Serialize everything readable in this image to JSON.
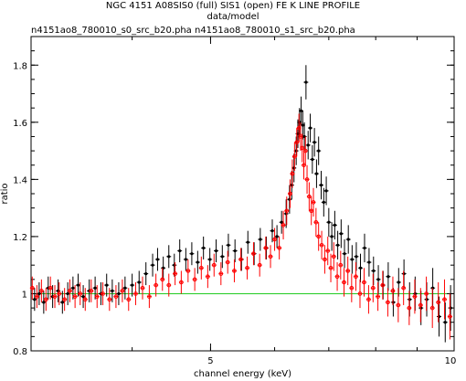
{
  "header": {
    "title": "NGC 4151 A08SIS0 (full) SIS1 (open) FE K LINE PROFILE",
    "subtitle": "data/model",
    "files": "n4151ao8_780010_s0_src_b20.pha n4151ao8_780010_s1_src_b20.pha"
  },
  "chart_data": {
    "type": "scatter",
    "title": "NGC 4151 A08SIS0 (full) SIS1 (open) FE K LINE PROFILE",
    "subtitle": "data/model",
    "xlabel": "channel energy (keV)",
    "ylabel": "ratio",
    "xscale": "log",
    "xlim": [
      3.0,
      10.0
    ],
    "ylim": [
      0.8,
      1.9
    ],
    "xticks": [
      {
        "value": 5,
        "label": "5"
      },
      {
        "value": 10,
        "label": "10"
      }
    ],
    "yticks": [
      {
        "value": 0.8,
        "label": "0.8"
      },
      {
        "value": 1.0,
        "label": "1"
      },
      {
        "value": 1.2,
        "label": "1.2"
      },
      {
        "value": 1.4,
        "label": "1.4"
      },
      {
        "value": 1.6,
        "label": "1.6"
      },
      {
        "value": 1.8,
        "label": "1.8"
      }
    ],
    "reference_line": {
      "y": 1.0,
      "color": "#22cc22"
    },
    "grid": false,
    "series": [
      {
        "color": "#000000",
        "points": [
          [
            3.03,
            0.98,
            0.04
          ],
          [
            3.07,
            1.0,
            0.04
          ],
          [
            3.11,
            0.97,
            0.04
          ],
          [
            3.15,
            1.02,
            0.04
          ],
          [
            3.19,
            0.99,
            0.04
          ],
          [
            3.24,
            1.01,
            0.04
          ],
          [
            3.28,
            0.97,
            0.04
          ],
          [
            3.33,
            1.0,
            0.04
          ],
          [
            3.38,
            1.02,
            0.04
          ],
          [
            3.43,
            1.03,
            0.04
          ],
          [
            3.48,
            0.99,
            0.04
          ],
          [
            3.54,
            1.01,
            0.04
          ],
          [
            3.6,
            1.02,
            0.04
          ],
          [
            3.66,
            1.0,
            0.04
          ],
          [
            3.72,
            1.03,
            0.04
          ],
          [
            3.78,
            1.01,
            0.04
          ],
          [
            3.85,
            1.0,
            0.04
          ],
          [
            3.92,
            1.02,
            0.04
          ],
          [
            4.0,
            1.03,
            0.04
          ],
          [
            4.08,
            1.04,
            0.04
          ],
          [
            4.16,
            1.07,
            0.04
          ],
          [
            4.24,
            1.1,
            0.04
          ],
          [
            4.3,
            1.12,
            0.04
          ],
          [
            4.37,
            1.09,
            0.04
          ],
          [
            4.44,
            1.13,
            0.04
          ],
          [
            4.51,
            1.1,
            0.04
          ],
          [
            4.58,
            1.15,
            0.04
          ],
          [
            4.66,
            1.12,
            0.04
          ],
          [
            4.74,
            1.14,
            0.04
          ],
          [
            4.82,
            1.11,
            0.04
          ],
          [
            4.9,
            1.16,
            0.04
          ],
          [
            4.99,
            1.12,
            0.04
          ],
          [
            5.08,
            1.15,
            0.04
          ],
          [
            5.17,
            1.13,
            0.04
          ],
          [
            5.26,
            1.17,
            0.04
          ],
          [
            5.36,
            1.15,
            0.04
          ],
          [
            5.46,
            1.12,
            0.04
          ],
          [
            5.56,
            1.18,
            0.04
          ],
          [
            5.66,
            1.14,
            0.04
          ],
          [
            5.76,
            1.19,
            0.04
          ],
          [
            5.86,
            1.16,
            0.04
          ],
          [
            5.96,
            1.22,
            0.04
          ],
          [
            6.04,
            1.2,
            0.04
          ],
          [
            6.12,
            1.25,
            0.04
          ],
          [
            6.2,
            1.28,
            0.05
          ],
          [
            6.26,
            1.33,
            0.05
          ],
          [
            6.3,
            1.38,
            0.05
          ],
          [
            6.34,
            1.44,
            0.05
          ],
          [
            6.38,
            1.5,
            0.05
          ],
          [
            6.41,
            1.56,
            0.05
          ],
          [
            6.44,
            1.6,
            0.05
          ],
          [
            6.47,
            1.64,
            0.05
          ],
          [
            6.5,
            1.59,
            0.05
          ],
          [
            6.53,
            1.55,
            0.05
          ],
          [
            6.56,
            1.74,
            0.06
          ],
          [
            6.6,
            1.52,
            0.05
          ],
          [
            6.64,
            1.58,
            0.05
          ],
          [
            6.68,
            1.47,
            0.05
          ],
          [
            6.72,
            1.53,
            0.05
          ],
          [
            6.76,
            1.42,
            0.05
          ],
          [
            6.8,
            1.5,
            0.05
          ],
          [
            6.85,
            1.38,
            0.05
          ],
          [
            6.9,
            1.32,
            0.05
          ],
          [
            6.95,
            1.36,
            0.05
          ],
          [
            7.0,
            1.25,
            0.05
          ],
          [
            7.06,
            1.2,
            0.05
          ],
          [
            7.12,
            1.24,
            0.05
          ],
          [
            7.18,
            1.17,
            0.05
          ],
          [
            7.25,
            1.21,
            0.05
          ],
          [
            7.32,
            1.14,
            0.05
          ],
          [
            7.4,
            1.19,
            0.05
          ],
          [
            7.48,
            1.12,
            0.05
          ],
          [
            7.57,
            1.13,
            0.05
          ],
          [
            7.66,
            1.09,
            0.05
          ],
          [
            7.75,
            1.16,
            0.05
          ],
          [
            7.85,
            1.11,
            0.05
          ],
          [
            7.95,
            1.08,
            0.05
          ],
          [
            8.06,
            1.05,
            0.05
          ],
          [
            8.17,
            1.03,
            0.05
          ],
          [
            8.29,
            1.06,
            0.05
          ],
          [
            8.41,
            0.97,
            0.05
          ],
          [
            8.54,
            1.04,
            0.05
          ],
          [
            8.67,
            1.07,
            0.05
          ],
          [
            8.81,
            0.98,
            0.06
          ],
          [
            8.95,
            1.0,
            0.06
          ],
          [
            9.1,
            0.95,
            0.06
          ],
          [
            9.25,
            0.98,
            0.06
          ],
          [
            9.41,
            1.02,
            0.07
          ],
          [
            9.58,
            0.92,
            0.07
          ],
          [
            9.75,
            0.9,
            0.07
          ],
          [
            9.9,
            0.95,
            0.08
          ]
        ]
      },
      {
        "color": "#ff0000",
        "points": [
          [
            3.01,
            1.02,
            0.04
          ],
          [
            3.05,
            0.99,
            0.04
          ],
          [
            3.09,
            1.01,
            0.04
          ],
          [
            3.13,
            0.98,
            0.04
          ],
          [
            3.17,
            1.02,
            0.04
          ],
          [
            3.21,
            0.99,
            0.04
          ],
          [
            3.25,
            1.0,
            0.04
          ],
          [
            3.3,
            0.98,
            0.04
          ],
          [
            3.35,
            1.01,
            0.04
          ],
          [
            3.4,
            0.99,
            0.04
          ],
          [
            3.45,
            1.0,
            0.04
          ],
          [
            3.5,
            0.98,
            0.04
          ],
          [
            3.56,
            1.01,
            0.04
          ],
          [
            3.62,
            0.99,
            0.04
          ],
          [
            3.68,
            1.0,
            0.04
          ],
          [
            3.75,
            0.98,
            0.04
          ],
          [
            3.82,
            0.99,
            0.04
          ],
          [
            3.89,
            1.01,
            0.04
          ],
          [
            3.96,
            0.98,
            0.04
          ],
          [
            4.04,
            1.0,
            0.04
          ],
          [
            4.12,
            1.02,
            0.04
          ],
          [
            4.2,
            0.99,
            0.04
          ],
          [
            4.28,
            1.03,
            0.04
          ],
          [
            4.36,
            1.05,
            0.04
          ],
          [
            4.44,
            1.03,
            0.04
          ],
          [
            4.52,
            1.07,
            0.04
          ],
          [
            4.6,
            1.04,
            0.04
          ],
          [
            4.69,
            1.08,
            0.04
          ],
          [
            4.78,
            1.05,
            0.04
          ],
          [
            4.87,
            1.09,
            0.04
          ],
          [
            4.96,
            1.06,
            0.04
          ],
          [
            5.05,
            1.1,
            0.04
          ],
          [
            5.15,
            1.07,
            0.04
          ],
          [
            5.25,
            1.11,
            0.04
          ],
          [
            5.35,
            1.08,
            0.04
          ],
          [
            5.45,
            1.12,
            0.04
          ],
          [
            5.55,
            1.09,
            0.04
          ],
          [
            5.65,
            1.14,
            0.04
          ],
          [
            5.75,
            1.1,
            0.04
          ],
          [
            5.85,
            1.16,
            0.04
          ],
          [
            5.93,
            1.13,
            0.04
          ],
          [
            6.0,
            1.19,
            0.04
          ],
          [
            6.08,
            1.16,
            0.04
          ],
          [
            6.15,
            1.24,
            0.05
          ],
          [
            6.21,
            1.29,
            0.05
          ],
          [
            6.27,
            1.35,
            0.05
          ],
          [
            6.31,
            1.42,
            0.05
          ],
          [
            6.35,
            1.48,
            0.05
          ],
          [
            6.39,
            1.53,
            0.05
          ],
          [
            6.43,
            1.58,
            0.05
          ],
          [
            6.46,
            1.55,
            0.05
          ],
          [
            6.49,
            1.51,
            0.05
          ],
          [
            6.52,
            1.45,
            0.05
          ],
          [
            6.55,
            1.5,
            0.05
          ],
          [
            6.58,
            1.4,
            0.05
          ],
          [
            6.62,
            1.34,
            0.05
          ],
          [
            6.66,
            1.29,
            0.05
          ],
          [
            6.7,
            1.32,
            0.05
          ],
          [
            6.75,
            1.25,
            0.05
          ],
          [
            6.8,
            1.2,
            0.05
          ],
          [
            6.86,
            1.17,
            0.05
          ],
          [
            6.92,
            1.12,
            0.05
          ],
          [
            6.98,
            1.15,
            0.05
          ],
          [
            7.04,
            1.09,
            0.05
          ],
          [
            7.1,
            1.13,
            0.05
          ],
          [
            7.17,
            1.06,
            0.05
          ],
          [
            7.24,
            1.1,
            0.05
          ],
          [
            7.31,
            1.04,
            0.05
          ],
          [
            7.39,
            1.08,
            0.05
          ],
          [
            7.47,
            1.02,
            0.05
          ],
          [
            7.56,
            1.06,
            0.05
          ],
          [
            7.65,
            1.0,
            0.05
          ],
          [
            7.74,
            1.04,
            0.05
          ],
          [
            7.84,
            0.98,
            0.05
          ],
          [
            7.94,
            1.02,
            0.05
          ],
          [
            8.05,
            0.99,
            0.05
          ],
          [
            8.16,
            1.03,
            0.05
          ],
          [
            8.28,
            0.97,
            0.05
          ],
          [
            8.4,
            1.01,
            0.05
          ],
          [
            8.53,
            0.96,
            0.06
          ],
          [
            8.66,
            1.02,
            0.06
          ],
          [
            8.8,
            0.95,
            0.06
          ],
          [
            8.94,
            0.99,
            0.06
          ],
          [
            9.09,
            0.96,
            0.06
          ],
          [
            9.24,
            1.0,
            0.06
          ],
          [
            9.4,
            0.95,
            0.07
          ],
          [
            9.56,
            0.97,
            0.07
          ],
          [
            9.73,
            0.98,
            0.07
          ],
          [
            9.88,
            0.92,
            0.08
          ]
        ]
      }
    ]
  }
}
